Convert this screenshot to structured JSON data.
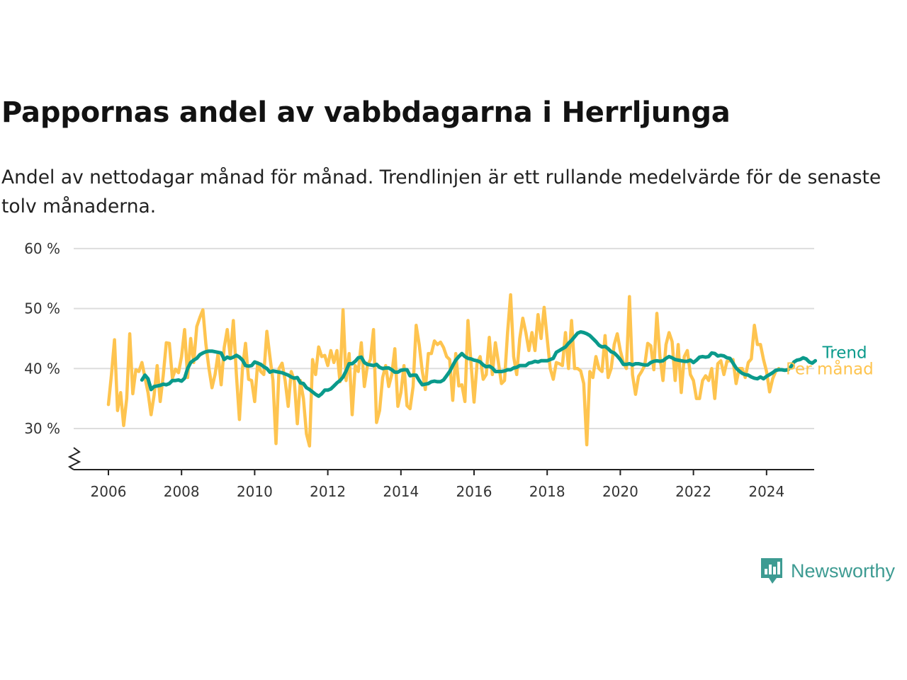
{
  "title": "Pappornas andel av vabbdagarna i Herrljunga",
  "subtitle": "Andel av nettodagar månad för månad. Trendlinjen är ett rullande medelvärde för de senaste tolv månaderna.",
  "brand": {
    "name": "Newsworthy",
    "icon": "newsworthy-chart-bubble-icon",
    "color": "#3d9b92"
  },
  "chart_data": {
    "type": "line",
    "xlabel": "",
    "ylabel": "",
    "ylim": [
      25,
      60
    ],
    "xlim": [
      2005.75,
      2025.25
    ],
    "grid": true,
    "axis_break": true,
    "y_ticks": [
      {
        "value": 30,
        "label": "30 %"
      },
      {
        "value": 40,
        "label": "40 %"
      },
      {
        "value": 50,
        "label": "50 %"
      },
      {
        "value": 60,
        "label": "60 %"
      }
    ],
    "x_ticks": [
      {
        "value": 2006,
        "label": "2006"
      },
      {
        "value": 2008,
        "label": "2008"
      },
      {
        "value": 2010,
        "label": "2010"
      },
      {
        "value": 2012,
        "label": "2012"
      },
      {
        "value": 2014,
        "label": "2014"
      },
      {
        "value": 2016,
        "label": "2016"
      },
      {
        "value": 2018,
        "label": "2018"
      },
      {
        "value": 2020,
        "label": "2020"
      },
      {
        "value": 2022,
        "label": "2022"
      },
      {
        "value": 2024,
        "label": "2024"
      }
    ],
    "series": [
      {
        "name": "Per månad",
        "color": "#fec44f",
        "x_start": 2006.0,
        "x_step_months": 1,
        "values": [
          34,
          39,
          44.8,
          33,
          36,
          30.5,
          35,
          45.8,
          35.8,
          39.8,
          39.5,
          41,
          38.5,
          36,
          32.3,
          35.6,
          40.5,
          34.5,
          38.9,
          44.3,
          44.2,
          38.4,
          39.9,
          39.3,
          42,
          46.5,
          38.5,
          45,
          41,
          47,
          48.5,
          49.8,
          44,
          40,
          36.8,
          39,
          42.5,
          37.3,
          43.5,
          46.5,
          42,
          48,
          39,
          31.5,
          40,
          44.2,
          38.2,
          38,
          34.5,
          41,
          39.5,
          39,
          46.2,
          42,
          38,
          27.5,
          40,
          40.9,
          38,
          33.7,
          39.5,
          38,
          30.8,
          38,
          35,
          29.1,
          27.1,
          41.5,
          39,
          43.6,
          42,
          42.2,
          40.5,
          43,
          41,
          43,
          37.8,
          49.8,
          38,
          42.5,
          32.3,
          40.5,
          39.5,
          44.3,
          37,
          40.5,
          41.5,
          46.5,
          31,
          33,
          38.5,
          40.5,
          37,
          39,
          43.3,
          33.7,
          36,
          40.5,
          33.8,
          33.3,
          37,
          47.2,
          44,
          39.6,
          36.5,
          42.5,
          42.5,
          44.6,
          44,
          44.4,
          43.5,
          42,
          41.5,
          34.7,
          42.5,
          37.1,
          37.3,
          34.5,
          48,
          40.9,
          34.4,
          40.9,
          42,
          38.2,
          39,
          45.2,
          39,
          44.3,
          41,
          37.5,
          38,
          46,
          52.3,
          42,
          39,
          45,
          48.4,
          46,
          43,
          46,
          43,
          49,
          45,
          50.2,
          45,
          40,
          38.2,
          41,
          40.8,
          40.5,
          46,
          40,
          48,
          40,
          40,
          39.6,
          37.5,
          27.3,
          39.5,
          38.5,
          42,
          40,
          39.5,
          45.5,
          38.5,
          40,
          44,
          45.8,
          43,
          41,
          40,
          52,
          39,
          35.7,
          38.7,
          39.5,
          40.5,
          44.2,
          43.8,
          39.8,
          49.2,
          42,
          38,
          44,
          46,
          44.5,
          38,
          44,
          36,
          42,
          43,
          39,
          38,
          35,
          35,
          38,
          38.8,
          38,
          40,
          35,
          40.8,
          41.3,
          39,
          41.2,
          41.3,
          41.5,
          37.5,
          40,
          40,
          38.5,
          41,
          41.6,
          47.2,
          44,
          44,
          41.5,
          39.5,
          36.1,
          38.3,
          39.5,
          40
        ]
      },
      {
        "name": "Trend",
        "color": "#0a9a8b",
        "x_start": 2006.917,
        "x_step_months": 1,
        "values": [
          38.1,
          38.9,
          38.3,
          36.5,
          37,
          37.1,
          37.2,
          37.4,
          37.3,
          37.5,
          38,
          38,
          38.1,
          37.9,
          38.4,
          40,
          41,
          41.4,
          41.7,
          42.3,
          42.6,
          42.8,
          42.9,
          42.9,
          42.8,
          42.7,
          42.6,
          41.5,
          41.9,
          41.7,
          41.9,
          42.2,
          41.9,
          41.4,
          40.5,
          40.4,
          40.5,
          41.1,
          40.9,
          40.7,
          40.3,
          40,
          39.4,
          39.6,
          39.5,
          39.4,
          39.3,
          39.1,
          38.9,
          38.6,
          38.4,
          38.5,
          37.6,
          37.5,
          36.8,
          36.5,
          36.1,
          35.7,
          35.4,
          35.8,
          36.4,
          36.4,
          36.6,
          37.1,
          37.6,
          38,
          38.6,
          39.6,
          40.8,
          40.8,
          41.2,
          41.8,
          41.9,
          41,
          40.7,
          40.6,
          40.5,
          40.7,
          40.2,
          40,
          40.1,
          40.1,
          39.8,
          39.4,
          39.4,
          39.7,
          39.8,
          39.8,
          38.8,
          38.9,
          38.9,
          38,
          37.3,
          37.4,
          37.5,
          37.8,
          37.9,
          37.8,
          37.8,
          38.1,
          38.8,
          39.5,
          40.5,
          41.4,
          42,
          42.5,
          42,
          41.7,
          41.6,
          41.4,
          41.3,
          41.1,
          40.6,
          40.3,
          40.4,
          40.1,
          39.5,
          39.5,
          39.5,
          39.6,
          39.8,
          39.8,
          40.1,
          40.2,
          40.5,
          40.5,
          40.5,
          40.9,
          41,
          41.2,
          41.1,
          41.3,
          41.3,
          41.3,
          41.5,
          41.7,
          42.7,
          43,
          43.3,
          43.6,
          44.2,
          44.7,
          45.3,
          45.9,
          46.1,
          46,
          45.8,
          45.5,
          45,
          44.5,
          43.9,
          43.6,
          43.7,
          43.3,
          42.8,
          42.6,
          42.1,
          41.5,
          40.7,
          40.7,
          40.8,
          40.6,
          40.8,
          40.8,
          40.7,
          40.6,
          40.6,
          41,
          41.2,
          41.3,
          41.2,
          41.3,
          41.7,
          42,
          41.8,
          41.5,
          41.4,
          41.3,
          41.2,
          41.2,
          41.4,
          41,
          41.4,
          41.9,
          42,
          41.9,
          42,
          42.6,
          42.5,
          42.1,
          42.2,
          42.1,
          41.8,
          41.7,
          40.9,
          40.1,
          39.6,
          39.2,
          39,
          38.9,
          38.6,
          38.4,
          38.3,
          38.6,
          38.3,
          38.7,
          39,
          39.3,
          39.7,
          39.8,
          39.8,
          39.7,
          39.8,
          40.3,
          41.1,
          41.4,
          41.5,
          41.8,
          41.6,
          41.1,
          40.9,
          41.3
        ]
      }
    ]
  }
}
